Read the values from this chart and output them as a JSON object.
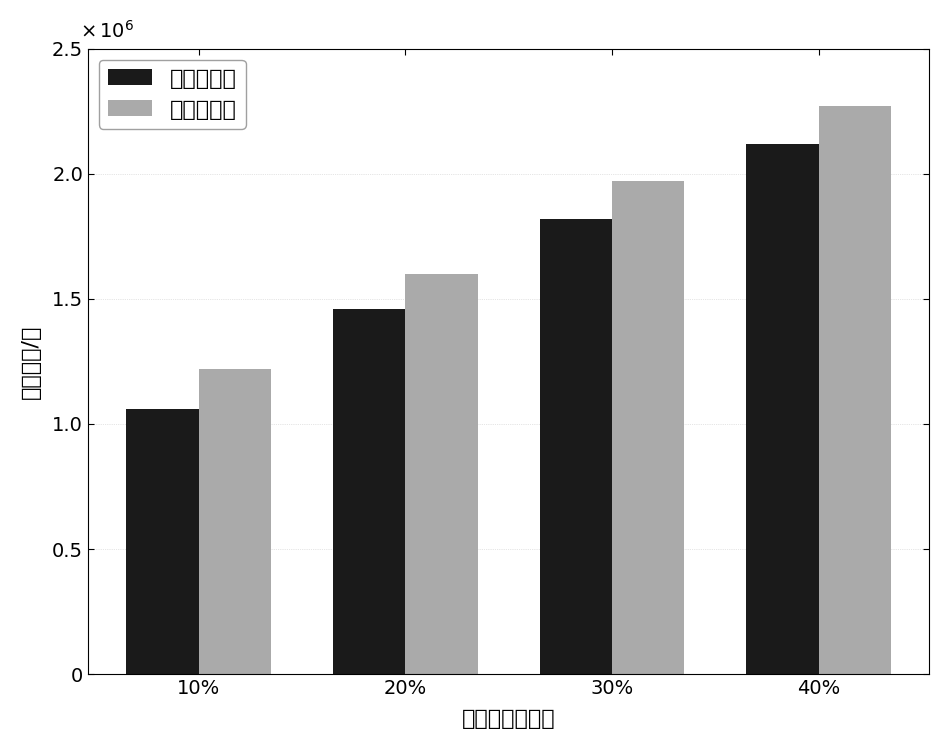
{
  "categories": [
    "10%",
    "20%",
    "30%",
    "40%"
  ],
  "series1_values": [
    1060000,
    1460000,
    1820000,
    2120000
  ],
  "series2_values": [
    1220000,
    1600000,
    1970000,
    2270000
  ],
  "series1_label": "本发明方法",
  "series2_label": "先到先服务",
  "series1_color": "#1a1a1a",
  "series2_color": "#aaaaaa",
  "ylabel": "延误据失/元",
  "xlabel": "增加航班的比例",
  "ylim": [
    0,
    2500000
  ],
  "ytick_scale": 1000000,
  "yticks": [
    0,
    0.5,
    1.0,
    1.5,
    2.0,
    2.5
  ],
  "bar_width": 0.35,
  "legend_fontsize": 16,
  "axis_fontsize": 16,
  "tick_fontsize": 14,
  "background_color": "#ffffff"
}
